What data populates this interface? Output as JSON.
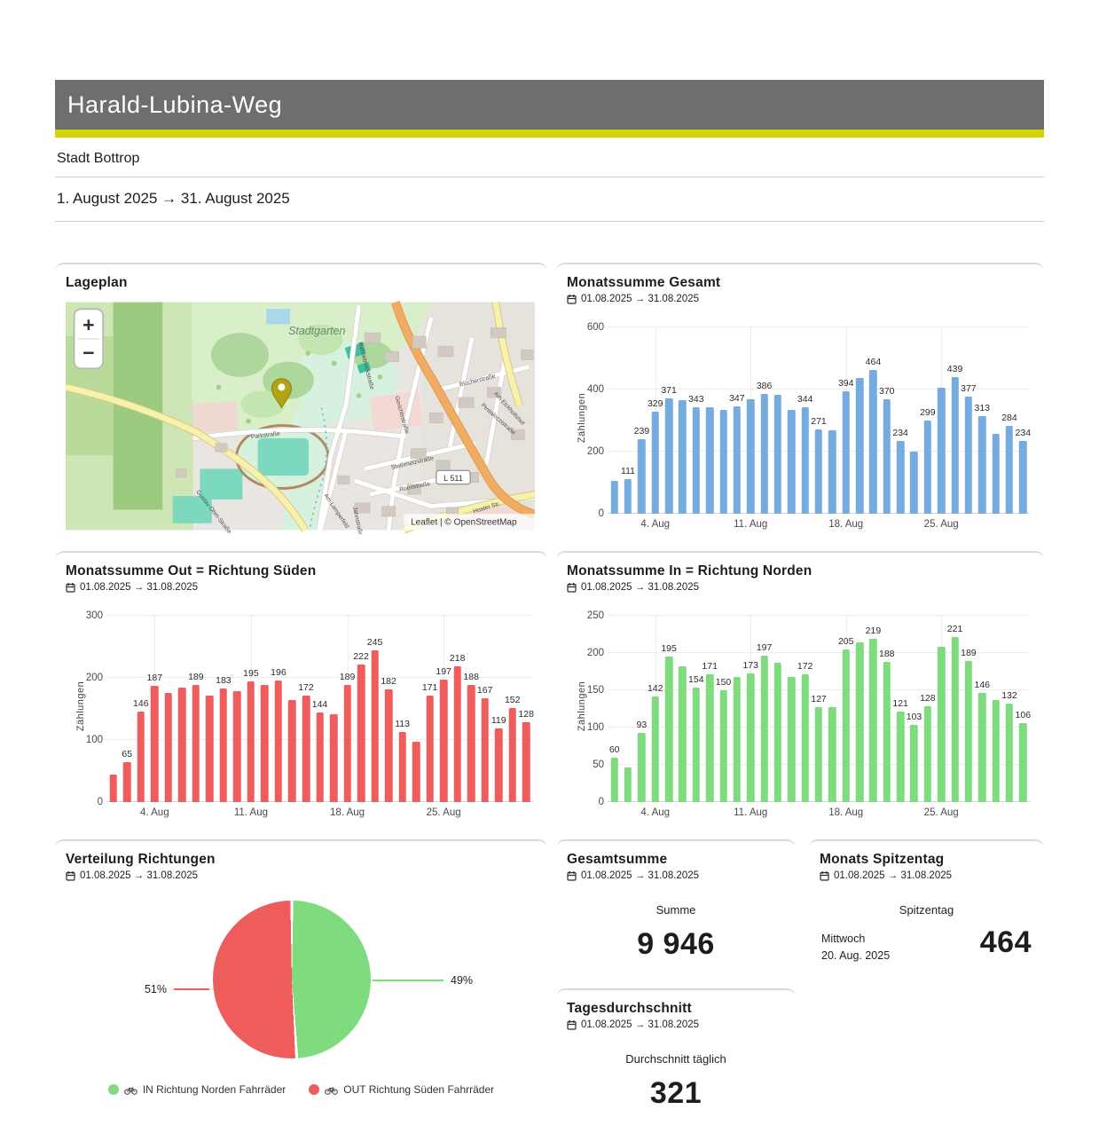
{
  "header": {
    "title": "Harald-Lubina-Weg",
    "subtitle": "Stadt Bottrop",
    "date_range": "1. August 2025 → 31. August 2025"
  },
  "period": "01.08.2025 → 31.08.2025",
  "colors": {
    "header_bg": "#6e6e6e",
    "accent": "#d4d500",
    "total_bar": "#76abdf",
    "out_bar": "#ee5c5c",
    "in_bar": "#7edc7e"
  },
  "map": {
    "title": "Lageplan",
    "zoom_in": "+",
    "zoom_out": "−",
    "attribution": "Leaflet | © OpenStreetMap",
    "area_label": "Stadtgarten",
    "road_badge": "L 511",
    "streets": [
      "Parkstraße",
      "Steinmetzstraße",
      "Roonstraße",
      "Gerichtsstraße",
      "Blücherstraße",
      "Pestalozzistraße",
      "Am Lamperfeld",
      "Gustav-Ohm-Straße",
      "Jahnstraße",
      "Rahnebrockstraße",
      "Hoster Str.",
      "Am Eickholtshof"
    ]
  },
  "chart_data": [
    {
      "type": "bar",
      "title": "Monatssumme Gesamt",
      "period": "01.08.2025 → 31.08.2025",
      "ylabel": "Zählungen",
      "ylim": [
        0,
        600
      ],
      "yticks": [
        0,
        200,
        400,
        600
      ],
      "x_unit": "day of August 2025",
      "x": [
        1,
        2,
        3,
        4,
        5,
        6,
        7,
        8,
        9,
        10,
        11,
        12,
        13,
        14,
        15,
        16,
        17,
        18,
        19,
        20,
        21,
        22,
        23,
        24,
        25,
        26,
        27,
        28,
        29,
        30,
        31
      ],
      "values": [
        105,
        111,
        239,
        329,
        371,
        367,
        343,
        343,
        333,
        347,
        368,
        386,
        383,
        333,
        344,
        271,
        268,
        394,
        436,
        464,
        370,
        234,
        200,
        299,
        405,
        439,
        377,
        313,
        256,
        284,
        234
      ],
      "labeled_days": [
        2,
        3,
        4,
        5,
        7,
        10,
        12,
        15,
        16,
        18,
        20,
        21,
        22,
        24,
        26,
        27,
        28,
        30,
        31
      ],
      "xticks": [
        {
          "day": 4,
          "label": "4. Aug"
        },
        {
          "day": 11,
          "label": "11. Aug"
        },
        {
          "day": 18,
          "label": "18. Aug"
        },
        {
          "day": 25,
          "label": "25. Aug"
        }
      ],
      "color": "#76abdf",
      "grid": true
    },
    {
      "type": "bar",
      "title": "Monatssumme Out = Richtung Süden",
      "period": "01.08.2025 → 31.08.2025",
      "ylabel": "Zählungen",
      "ylim": [
        0,
        300
      ],
      "yticks": [
        0,
        100,
        200,
        300
      ],
      "x_unit": "day of August 2025",
      "x": [
        1,
        2,
        3,
        4,
        5,
        6,
        7,
        8,
        9,
        10,
        11,
        12,
        13,
        14,
        15,
        16,
        17,
        18,
        19,
        20,
        21,
        22,
        23,
        24,
        25,
        26,
        27,
        28,
        29,
        30,
        31
      ],
      "values": [
        45,
        65,
        146,
        187,
        176,
        185,
        189,
        172,
        183,
        179,
        195,
        189,
        196,
        165,
        172,
        144,
        141,
        189,
        222,
        245,
        182,
        113,
        97,
        171,
        197,
        218,
        188,
        167,
        119,
        152,
        128
      ],
      "labeled_days": [
        2,
        3,
        4,
        7,
        9,
        11,
        13,
        15,
        16,
        18,
        19,
        20,
        21,
        22,
        24,
        25,
        26,
        27,
        28,
        29,
        30,
        31
      ],
      "xticks": [
        {
          "day": 4,
          "label": "4. Aug"
        },
        {
          "day": 11,
          "label": "11. Aug"
        },
        {
          "day": 18,
          "label": "18. Aug"
        },
        {
          "day": 25,
          "label": "25. Aug"
        }
      ],
      "color": "#ee5c5c",
      "grid": true
    },
    {
      "type": "bar",
      "title": "Monatssumme In = Richtung Norden",
      "period": "01.08.2025 → 31.08.2025",
      "ylabel": "Zählungen",
      "ylim": [
        0,
        250
      ],
      "yticks": [
        0,
        50,
        100,
        150,
        200,
        250
      ],
      "x_unit": "day of August 2025",
      "x": [
        1,
        2,
        3,
        4,
        5,
        6,
        7,
        8,
        9,
        10,
        11,
        12,
        13,
        14,
        15,
        16,
        17,
        18,
        19,
        20,
        21,
        22,
        23,
        24,
        25,
        26,
        27,
        28,
        29,
        30,
        31
      ],
      "values": [
        60,
        46,
        93,
        142,
        195,
        182,
        154,
        171,
        150,
        168,
        173,
        197,
        187,
        168,
        172,
        127,
        127,
        205,
        214,
        219,
        188,
        121,
        103,
        128,
        208,
        221,
        189,
        146,
        137,
        132,
        106
      ],
      "labeled_days": [
        1,
        3,
        4,
        5,
        7,
        8,
        9,
        11,
        12,
        15,
        16,
        18,
        20,
        21,
        22,
        23,
        24,
        26,
        27,
        28,
        30,
        31
      ],
      "xticks": [
        {
          "day": 4,
          "label": "4. Aug"
        },
        {
          "day": 11,
          "label": "11. Aug"
        },
        {
          "day": 18,
          "label": "18. Aug"
        },
        {
          "day": 25,
          "label": "25. Aug"
        }
      ],
      "color": "#7edc7e",
      "grid": true
    },
    {
      "type": "pie",
      "title": "Verteilung Richtungen",
      "period": "01.08.2025 → 31.08.2025",
      "slices": [
        {
          "label": "IN Richtung Norden Fahrräder",
          "percent": 49,
          "color": "#7edc7e"
        },
        {
          "label": "OUT Richtung Süden Fahrräder",
          "percent": 51,
          "color": "#ee5c5c"
        }
      ],
      "callouts": {
        "left": "51%",
        "right": "49%"
      },
      "legend_position": "bottom"
    }
  ],
  "stats": {
    "gesamtsumme": {
      "title": "Gesamtsumme",
      "caption": "Summe",
      "value": "9 946"
    },
    "spitzentag": {
      "title": "Monats Spitzentag",
      "caption": "Spitzentag",
      "weekday": "Mittwoch",
      "date": "20. Aug. 2025",
      "value": "464"
    },
    "tagesdurchschnitt": {
      "title": "Tagesdurchschnitt",
      "caption": "Durchschnitt täglich",
      "value": "321"
    }
  }
}
